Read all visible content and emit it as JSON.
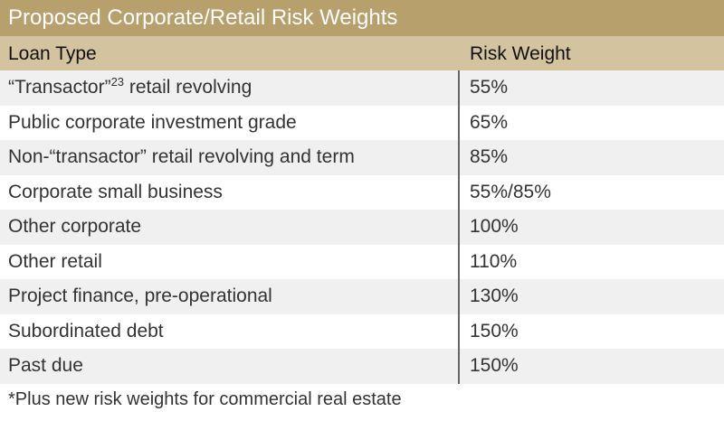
{
  "title": "Proposed Corporate/Retail Risk Weights",
  "columns": [
    "Loan Type",
    "Risk Weight"
  ],
  "rows": [
    {
      "pre": "“Transactor”",
      "sup": "23",
      "post": " retail revolving",
      "weight": "55%"
    },
    {
      "pre": "Public corporate investment grade",
      "sup": "",
      "post": "",
      "weight": "65%"
    },
    {
      "pre": "Non-“transactor” retail revolving and term",
      "sup": "",
      "post": "",
      "weight": "85%"
    },
    {
      "pre": "Corporate small business",
      "sup": "",
      "post": "",
      "weight": "55%/85%"
    },
    {
      "pre": "Other corporate",
      "sup": "",
      "post": "",
      "weight": "100%"
    },
    {
      "pre": "Other retail",
      "sup": "",
      "post": "",
      "weight": "110%"
    },
    {
      "pre": "Project finance, pre-operational",
      "sup": "",
      "post": "",
      "weight": "130%"
    },
    {
      "pre": "Subordinated debt",
      "sup": "",
      "post": "",
      "weight": "150%"
    },
    {
      "pre": "Past due",
      "sup": "",
      "post": "",
      "weight": "150%"
    }
  ],
  "footnote": "*Plus new risk weights for commercial real estate",
  "colors": {
    "title_bg": "#b8a06c",
    "header_bg": "#d3c49f",
    "stripe": "#f0f0f0"
  }
}
